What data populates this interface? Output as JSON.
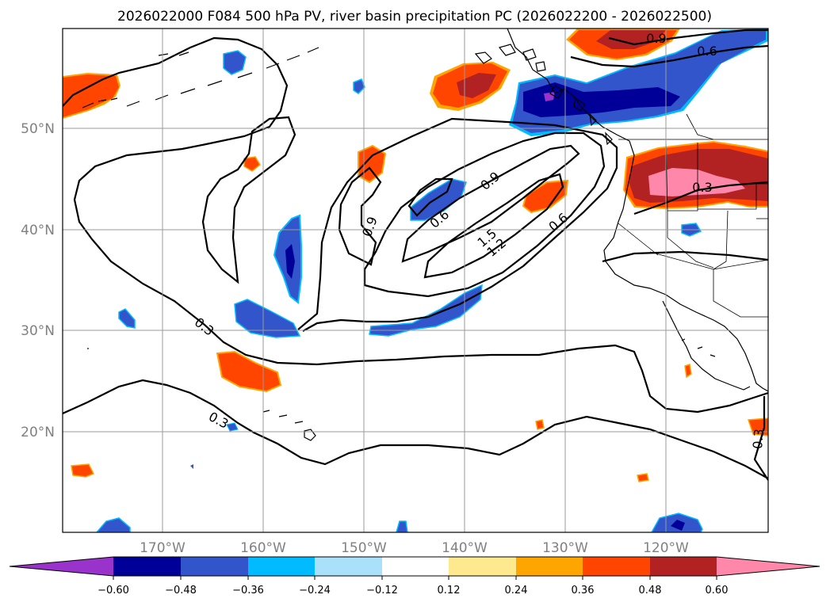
{
  "title": "2026022000 F084 500 hPa PV, river basin precipitation PC (2026022200 - 2026022500)",
  "lat_labels": [
    "50°N",
    "40°N",
    "30°N",
    "20°N"
  ],
  "lon_labels": [
    "170°W",
    "160°W",
    "150°W",
    "140°W",
    "130°W",
    "120°W"
  ],
  "contour_labels": [
    "0.9",
    "0.6",
    "0.9",
    "0.6",
    "0.9",
    "1.5",
    "1.2",
    "0.6",
    "0.3",
    "0.3",
    "0.3",
    "0.3"
  ],
  "colorbar": {
    "ticks": [
      "−0.60",
      "−0.48",
      "−0.36",
      "−0.24",
      "−0.12",
      "0.12",
      "0.24",
      "0.36",
      "0.48",
      "0.60"
    ],
    "colors": [
      "#9933cc",
      "#000099",
      "#3355cc",
      "#00bbff",
      "#aae0fa",
      "#ffffff",
      "#ffe98f",
      "#ffa500",
      "#ff4500",
      "#b22222",
      "#ff88aa",
      "#ff88aa"
    ]
  }
}
